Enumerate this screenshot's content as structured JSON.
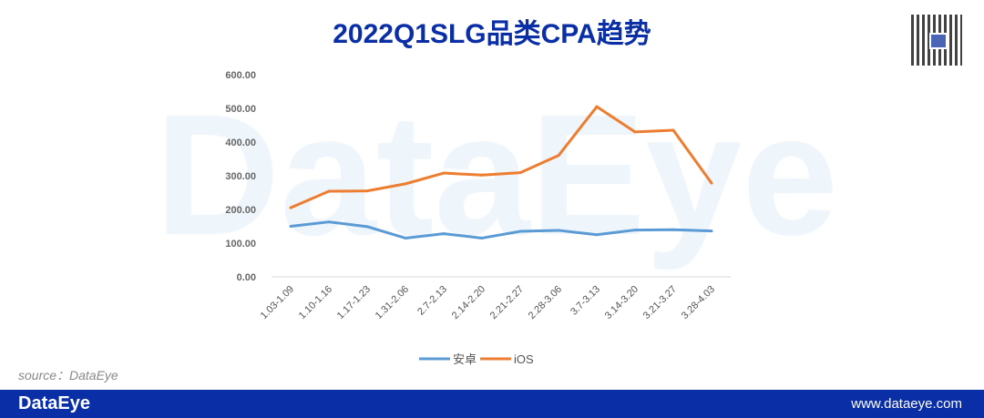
{
  "chart_data": {
    "type": "line",
    "title": "2022Q1SLG品类CPA趋势",
    "categories": [
      "1.03-1.09",
      "1.10-1.16",
      "1.17-1.23",
      "1.31-2.06",
      "2.7-2.13",
      "2.14-2.20",
      "2.21-2.27",
      "2.28-3.06",
      "3.7-3.13",
      "3.14-3.20",
      "3.21-3.27",
      "3.28-4.03"
    ],
    "series": [
      {
        "name": "安卓",
        "color": "#5b9bd5",
        "values": [
          150,
          163,
          149,
          115,
          128,
          115,
          135,
          138,
          125,
          139,
          140,
          136
        ]
      },
      {
        "name": "iOS",
        "color": "#ed7d31",
        "values": [
          205,
          254,
          255,
          276,
          308,
          302,
          309,
          360,
          505,
          430,
          435,
          278
        ]
      }
    ],
    "yticks": [
      "0.00",
      "100.00",
      "200.00",
      "300.00",
      "400.00",
      "500.00",
      "600.00"
    ],
    "ylim": [
      0,
      600
    ],
    "legend": "bottom"
  },
  "watermark": "DataEye",
  "source": "source：DataEye",
  "footer": {
    "logo": "DataEye",
    "url": "www.dataeye.com"
  }
}
